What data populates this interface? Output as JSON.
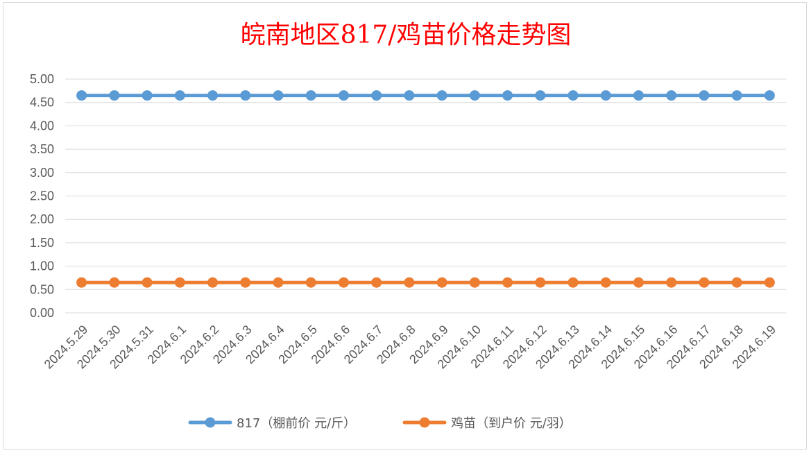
{
  "chart_data": {
    "type": "line",
    "title": "皖南地区817/鸡苗价格走势图",
    "categories": [
      "2024.5.29",
      "2024.5.30",
      "2024.5.31",
      "2024.6.1",
      "2024.6.2",
      "2024.6.3",
      "2024.6.4",
      "2024.6.5",
      "2024.6.6",
      "2024.6.7",
      "2024.6.8",
      "2024.6.9",
      "2024.6.10",
      "2024.6.11",
      "2024.6.12",
      "2024.6.13",
      "2024.6.14",
      "2024.6.15",
      "2024.6.16",
      "2024.6.17",
      "2024.6.18",
      "2024.6.19"
    ],
    "series": [
      {
        "name": "817（棚前价 元/斤）",
        "color": "#5b9bd5",
        "values": [
          4.65,
          4.65,
          4.65,
          4.65,
          4.65,
          4.65,
          4.65,
          4.65,
          4.65,
          4.65,
          4.65,
          4.65,
          4.65,
          4.65,
          4.65,
          4.65,
          4.65,
          4.65,
          4.65,
          4.65,
          4.65,
          4.65
        ]
      },
      {
        "name": "鸡苗（到户价 元/羽）",
        "color": "#ed7d31",
        "values": [
          0.65,
          0.65,
          0.65,
          0.65,
          0.65,
          0.65,
          0.65,
          0.65,
          0.65,
          0.65,
          0.65,
          0.65,
          0.65,
          0.65,
          0.65,
          0.65,
          0.65,
          0.65,
          0.65,
          0.65,
          0.65,
          0.65
        ]
      }
    ],
    "yticks": [
      "0.00",
      "0.50",
      "1.00",
      "1.50",
      "2.00",
      "2.50",
      "3.00",
      "3.50",
      "4.00",
      "4.50",
      "5.00"
    ],
    "ylim": [
      0,
      5
    ],
    "xlabel": "",
    "ylabel": "",
    "grid": true,
    "legend_position": "bottom",
    "title_color": "#ff0000"
  }
}
